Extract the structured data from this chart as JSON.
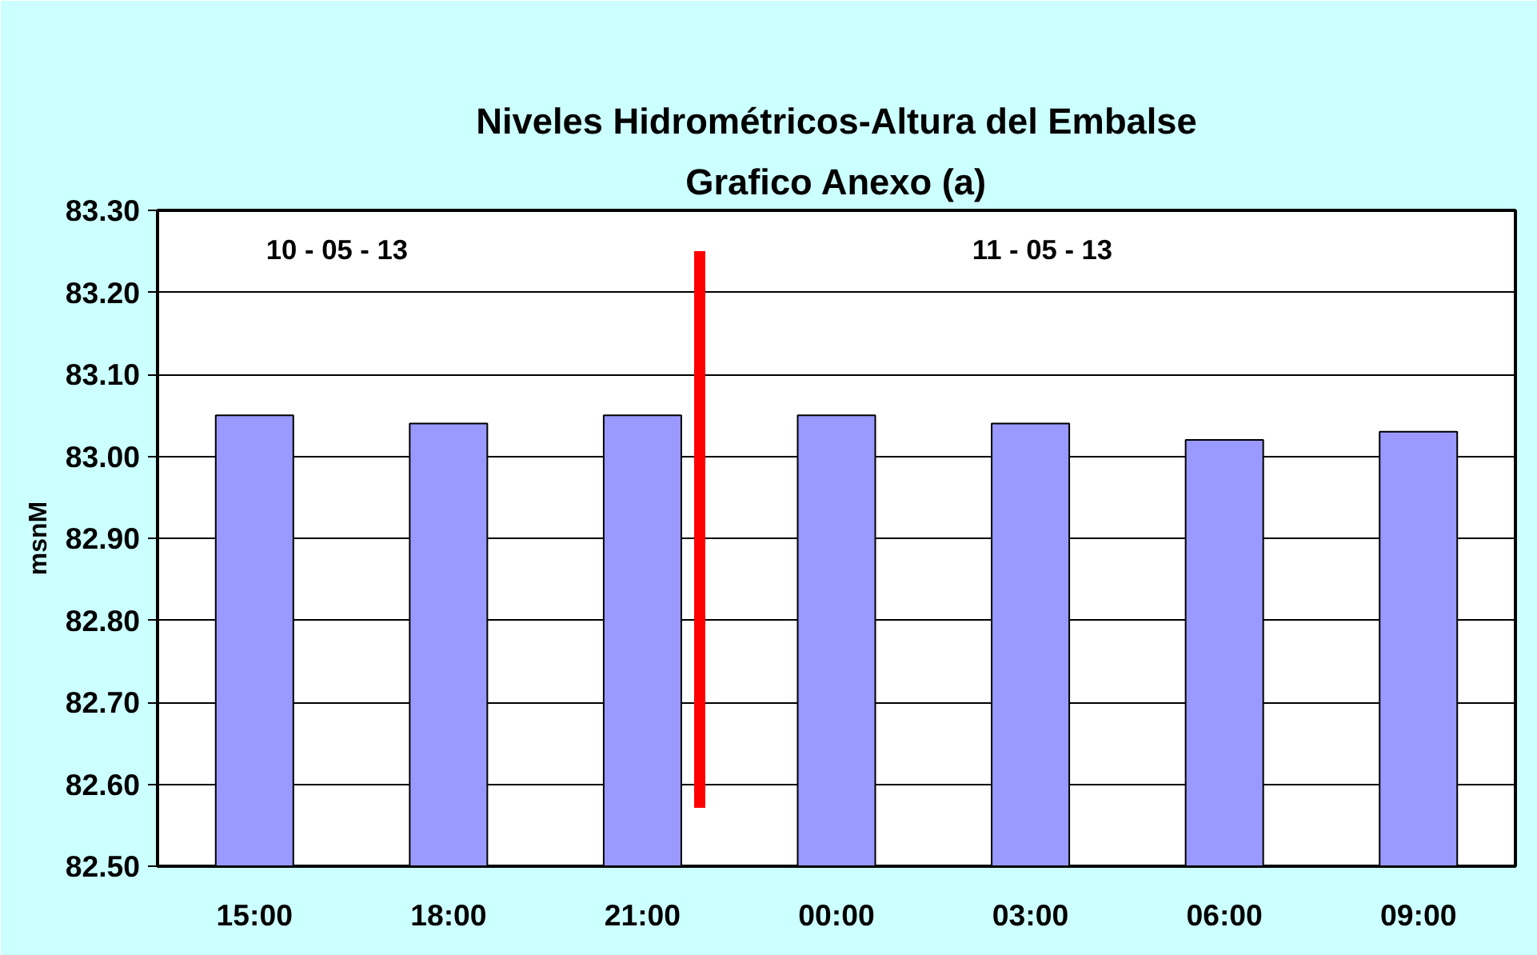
{
  "chart_data": {
    "type": "bar",
    "title": "Niveles Hidrométricos-Altura del Embalse",
    "subtitle": "Grafico Anexo (a)",
    "ylabel": "msnM",
    "categories": [
      "15:00",
      "18:00",
      "21:00",
      "00:00",
      "03:00",
      "06:00",
      "09:00"
    ],
    "series": [
      {
        "color": "#9999ff",
        "values": [
          83.05,
          83.04,
          83.05,
          83.05,
          83.04,
          83.02,
          83.03
        ]
      }
    ],
    "ylim": [
      82.5,
      83.3
    ],
    "yticks": [
      {
        "value": 82.5,
        "label": "82.50"
      },
      {
        "value": 82.6,
        "label": "82.60"
      },
      {
        "value": 82.7,
        "label": "82.70"
      },
      {
        "value": 82.8,
        "label": "82.80"
      },
      {
        "value": 82.9,
        "label": "82.90"
      },
      {
        "value": 83.0,
        "label": "83.00"
      },
      {
        "value": 83.1,
        "label": "83.10"
      },
      {
        "value": 83.2,
        "label": "83.20"
      },
      {
        "value": 83.3,
        "label": "83.30"
      }
    ],
    "grid": "y",
    "annotations": [
      "10 - 05 - 13",
      "11 - 05 - 13"
    ]
  }
}
